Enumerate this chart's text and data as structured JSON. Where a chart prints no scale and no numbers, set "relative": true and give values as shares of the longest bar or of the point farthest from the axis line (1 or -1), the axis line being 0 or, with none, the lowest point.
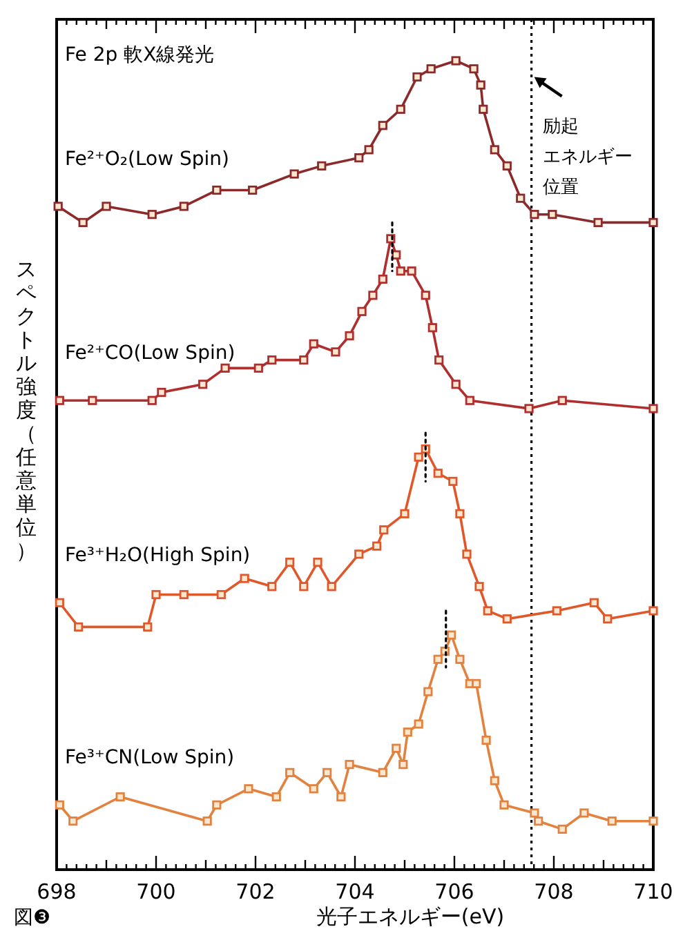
{
  "chart_data": {
    "type": "line",
    "relative": true,
    "title": "Fe 2p 軟X線発光",
    "xlabel": "光子エネルギー(eV)",
    "ylabel": "スペクトル強度（任意単位）",
    "xlim": [
      698,
      710
    ],
    "xticks": [
      698,
      {
        "value": 698.2,
        "label": null
      },
      {
        "value": 698.4,
        "label": null
      },
      {
        "value": 698.6,
        "label": null
      },
      {
        "value": 698.8,
        "label": null
      },
      {
        "value": 699,
        "label": null
      },
      {
        "value": 699.2,
        "label": null
      },
      {
        "value": 699.4,
        "label": null
      },
      {
        "value": 699.6,
        "label": null
      },
      {
        "value": 699.8,
        "label": null
      },
      700,
      {
        "value": 700.2,
        "label": null
      },
      {
        "value": 700.4,
        "label": null
      },
      {
        "value": 700.6,
        "label": null
      },
      {
        "value": 700.8,
        "label": null
      },
      {
        "value": 701,
        "label": null
      },
      {
        "value": 701.2,
        "label": null
      },
      {
        "value": 701.4,
        "label": null
      },
      {
        "value": 701.6,
        "label": null
      },
      {
        "value": 701.8,
        "label": null
      },
      702,
      {
        "value": 702.2,
        "label": null
      },
      {
        "value": 702.4,
        "label": null
      },
      {
        "value": 702.6,
        "label": null
      },
      {
        "value": 702.8,
        "label": null
      },
      {
        "value": 703,
        "label": null
      },
      {
        "value": 703.2,
        "label": null
      },
      {
        "value": 703.4,
        "label": null
      },
      {
        "value": 703.6,
        "label": null
      },
      {
        "value": 703.8,
        "label": null
      },
      704,
      {
        "value": 704.2,
        "label": null
      },
      {
        "value": 704.4,
        "label": null
      },
      {
        "value": 704.6,
        "label": null
      },
      {
        "value": 704.8,
        "label": null
      },
      {
        "value": 705,
        "label": null
      },
      {
        "value": 705.2,
        "label": null
      },
      {
        "value": 705.4,
        "label": null
      },
      {
        "value": 705.6,
        "label": null
      },
      {
        "value": 705.8,
        "label": null
      },
      706,
      {
        "value": 706.2,
        "label": null
      },
      {
        "value": 706.4,
        "label": null
      },
      {
        "value": 706.6,
        "label": null
      },
      {
        "value": 706.8,
        "label": null
      },
      {
        "value": 707,
        "label": null
      },
      {
        "value": 707.2,
        "label": null
      },
      {
        "value": 707.4,
        "label": null
      },
      {
        "value": 707.6,
        "label": null
      },
      {
        "value": 707.8,
        "label": null
      },
      708,
      {
        "value": 708.2,
        "label": null
      },
      {
        "value": 708.4,
        "label": null
      },
      {
        "value": 708.6,
        "label": null
      },
      {
        "value": 708.8,
        "label": null
      },
      {
        "value": 709,
        "label": null
      },
      {
        "value": 709.2,
        "label": null
      },
      {
        "value": 709.4,
        "label": null
      },
      {
        "value": 709.6,
        "label": null
      },
      {
        "value": 709.8,
        "label": null
      },
      710
    ],
    "grid": false,
    "legend": false,
    "marker": "square",
    "line_style": "solid",
    "series": [
      {
        "name": "Fe²⁺O₂(Low Spin)",
        "color": "#8b2a2a",
        "x": [
          698.03,
          698.53,
          699.0,
          699.92,
          700.56,
          701.22,
          701.94,
          702.78,
          703.33,
          704.08,
          704.28,
          704.56,
          704.92,
          705.25,
          705.53,
          706.03,
          706.39,
          706.53,
          706.58,
          706.81,
          707.06,
          707.33,
          707.61,
          707.97,
          708.89,
          710.0
        ],
        "values": [
          0.82,
          0.8,
          0.82,
          0.81,
          0.82,
          0.84,
          0.84,
          0.86,
          0.87,
          0.88,
          0.89,
          0.92,
          0.94,
          0.98,
          0.99,
          1.0,
          0.99,
          0.97,
          0.94,
          0.89,
          0.87,
          0.83,
          0.81,
          0.81,
          0.8,
          0.8
        ]
      },
      {
        "name": "Fe²⁺CO(Low Spin)",
        "color": "#b02e2e",
        "x": [
          698.06,
          698.72,
          699.92,
          700.11,
          700.94,
          701.39,
          702.06,
          702.33,
          702.97,
          703.17,
          703.61,
          703.89,
          704.14,
          704.36,
          704.56,
          704.72,
          704.83,
          704.92,
          705.14,
          705.42,
          705.56,
          705.69,
          706.03,
          706.31,
          707.5,
          708.17,
          710.0
        ],
        "values": [
          0.58,
          0.58,
          0.58,
          0.59,
          0.6,
          0.62,
          0.62,
          0.63,
          0.63,
          0.65,
          0.64,
          0.66,
          0.69,
          0.71,
          0.73,
          0.78,
          0.76,
          0.74,
          0.74,
          0.71,
          0.67,
          0.63,
          0.6,
          0.58,
          0.57,
          0.58,
          0.57
        ]
      },
      {
        "name": "Fe³⁺H₂O(High Spin)",
        "color": "#e0582a",
        "x": [
          698.06,
          698.44,
          699.83,
          700.0,
          700.56,
          701.31,
          701.78,
          702.33,
          702.69,
          702.97,
          703.25,
          703.53,
          704.08,
          704.44,
          704.58,
          705.0,
          705.28,
          705.42,
          705.67,
          705.97,
          706.11,
          706.25,
          706.5,
          706.67,
          707.06,
          708.06,
          708.81,
          709.08,
          710.0
        ],
        "values": [
          0.33,
          0.3,
          0.3,
          0.34,
          0.34,
          0.34,
          0.36,
          0.35,
          0.38,
          0.35,
          0.38,
          0.35,
          0.39,
          0.4,
          0.42,
          0.44,
          0.51,
          0.52,
          0.49,
          0.48,
          0.44,
          0.39,
          0.35,
          0.32,
          0.31,
          0.32,
          0.33,
          0.31,
          0.32
        ]
      },
      {
        "name": "Fe³⁺CN(Low Spin)",
        "color": "#e2823e",
        "x": [
          698.06,
          698.33,
          699.28,
          701.03,
          701.22,
          701.86,
          702.42,
          702.69,
          703.17,
          703.44,
          703.72,
          703.89,
          704.56,
          704.83,
          704.97,
          705.06,
          705.28,
          705.47,
          705.67,
          705.81,
          705.94,
          706.11,
          706.31,
          706.44,
          706.64,
          706.81,
          707.0,
          707.61,
          707.69,
          708.17,
          708.61,
          709.17,
          710.0
        ],
        "values": [
          0.08,
          0.06,
          0.09,
          0.06,
          0.08,
          0.1,
          0.09,
          0.12,
          0.1,
          0.12,
          0.09,
          0.13,
          0.12,
          0.15,
          0.13,
          0.17,
          0.18,
          0.22,
          0.26,
          0.27,
          0.29,
          0.26,
          0.23,
          0.23,
          0.16,
          0.11,
          0.08,
          0.07,
          0.06,
          0.05,
          0.07,
          0.06,
          0.06
        ]
      },
      {
        "color": "#000000",
        "marker": "none",
        "line_style": "dotted",
        "x": [
          704.75,
          704.75
        ],
        "values": [
          0.8,
          0.74
        ]
      },
      {
        "color": "#000000",
        "marker": "none",
        "line_style": "dotted",
        "x": [
          705.42,
          705.42
        ],
        "values": [
          0.54,
          0.48
        ]
      },
      {
        "color": "#000000",
        "marker": "none",
        "line_style": "dotted",
        "x": [
          705.83,
          705.83
        ],
        "values": [
          0.32,
          0.25
        ]
      }
    ],
    "ref_lines": [
      {
        "axis": "x",
        "value": 707.55,
        "color": "#000000",
        "line_style": "dotted"
      }
    ],
    "annotations": [
      {
        "text": "励起",
        "x": 707.55,
        "y": 0.98
      },
      "エネルギー",
      "位置",
      "図❸"
    ]
  }
}
